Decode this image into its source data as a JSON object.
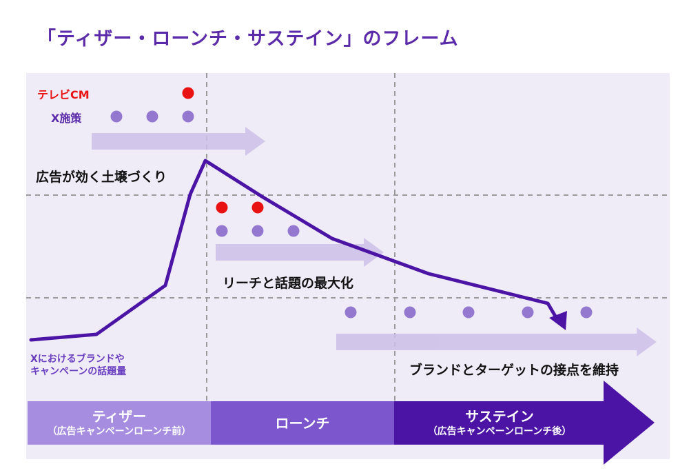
{
  "title": "「ティザー・ローンチ・サステイン」のフレーム",
  "legend": {
    "tv_cm": "テレビCM",
    "x_measures": "X施策"
  },
  "colors": {
    "title": "#5a2aa8",
    "tv_dot": "#e81212",
    "x_dot": "#9478cf",
    "curve": "#4b14a5",
    "arrow_light": "#ccbfe8",
    "teaser": "#a68de0",
    "launch": "#7c56cc",
    "sustain": "#4b14a5"
  },
  "phase_labels": {
    "teaser_goal": "広告が効く土壌づくり",
    "launch_goal": "リーチと話題の最大化",
    "sustain_goal": "ブランドとターゲットの接点を維持"
  },
  "curve_note": {
    "line1": "Xにおけるブランドや",
    "line2": "キャンペーンの話題量"
  },
  "phases": [
    {
      "name": "ティザー",
      "sub": "（広告キャンペーンローンチ前）"
    },
    {
      "name": "ローンチ",
      "sub": ""
    },
    {
      "name": "サステイン",
      "sub": "（広告キャンペーンローンチ後）"
    }
  ]
}
